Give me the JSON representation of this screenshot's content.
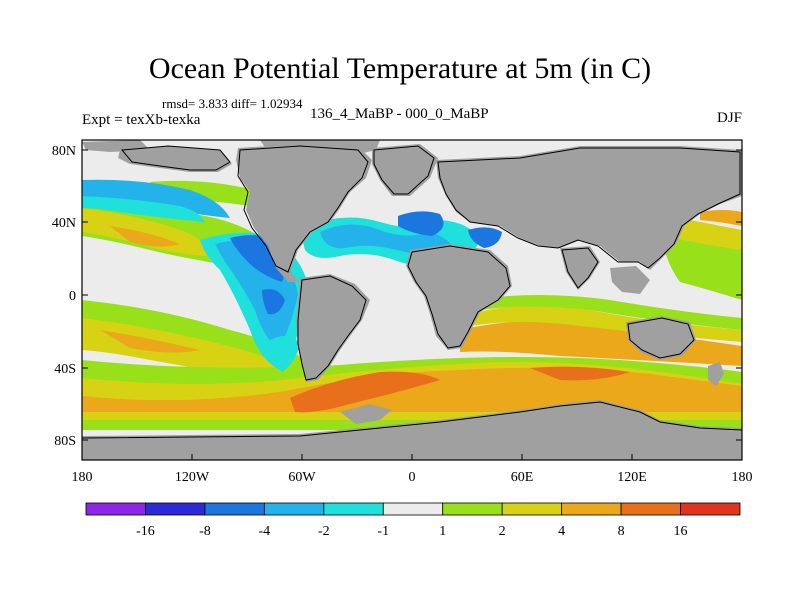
{
  "title": "Ocean Potential Temperature at 5m (in C)",
  "stats": "rmsd= 3.833 diff= 1.02934",
  "expt_label": "Expt = texXb-texka",
  "subtitle": "136_4_MaBP - 000_0_MaBP",
  "season": "DJF",
  "lat_ticks": [
    "80N",
    "40N",
    "0",
    "40S",
    "80S"
  ],
  "lon_ticks": [
    "180",
    "120W",
    "60W",
    "0",
    "60E",
    "120E",
    "180"
  ],
  "colorbar": {
    "colors": [
      "#8f25e8",
      "#2a2ad8",
      "#1c76e0",
      "#24b2ea",
      "#1fe0da",
      "#ececec",
      "#98e01a",
      "#d8d214",
      "#eaa81a",
      "#e8701c",
      "#e0341c"
    ],
    "labels": [
      "-16",
      "-8",
      "-4",
      "-2",
      "-1",
      "1",
      "2",
      "4",
      "8",
      "16"
    ]
  },
  "colors": {
    "land": "#a0a0a0",
    "neutral": "#ececec",
    "outline": "#000000"
  }
}
